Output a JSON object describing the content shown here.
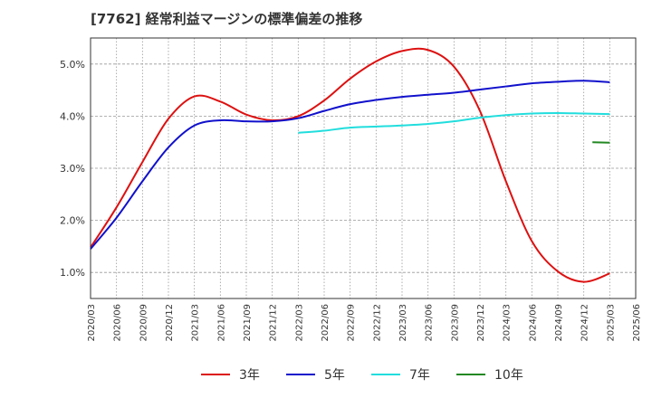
{
  "chart_data": {
    "type": "line",
    "title": "[7762]  経常利益マージンの標準偏差の推移",
    "xlabel": "",
    "ylabel": "",
    "ylim": [
      0.5,
      5.5
    ],
    "y_ticks": [
      "1.0%",
      "2.0%",
      "3.0%",
      "4.0%",
      "5.0%"
    ],
    "y_tick_values": [
      1.0,
      2.0,
      3.0,
      4.0,
      5.0
    ],
    "x_ticks": [
      "2020/03",
      "2020/06",
      "2020/09",
      "2020/12",
      "2021/03",
      "2021/06",
      "2021/09",
      "2021/12",
      "2022/03",
      "2022/06",
      "2022/09",
      "2022/12",
      "2023/03",
      "2023/06",
      "2023/09",
      "2023/12",
      "2024/03",
      "2024/06",
      "2024/09",
      "2024/12",
      "2025/03",
      "2025/06"
    ],
    "grid": true,
    "legend_position": "bottom",
    "series": [
      {
        "name": "3年",
        "color": "#dd1111",
        "points": [
          [
            "2020/03",
            1.48
          ],
          [
            "2020/06",
            2.25
          ],
          [
            "2020/09",
            3.12
          ],
          [
            "2020/12",
            3.95
          ],
          [
            "2021/03",
            4.38
          ],
          [
            "2021/06",
            4.28
          ],
          [
            "2021/09",
            4.03
          ],
          [
            "2021/12",
            3.92
          ],
          [
            "2022/03",
            4.0
          ],
          [
            "2022/06",
            4.3
          ],
          [
            "2022/09",
            4.72
          ],
          [
            "2022/12",
            5.05
          ],
          [
            "2023/03",
            5.25
          ],
          [
            "2023/06",
            5.27
          ],
          [
            "2023/09",
            4.95
          ],
          [
            "2023/12",
            4.1
          ],
          [
            "2024/03",
            2.75
          ],
          [
            "2024/06",
            1.6
          ],
          [
            "2024/09",
            1.02
          ],
          [
            "2024/12",
            0.82
          ],
          [
            "2025/03",
            0.98
          ]
        ]
      },
      {
        "name": "5年",
        "color": "#1111cc",
        "points": [
          [
            "2020/03",
            1.45
          ],
          [
            "2020/06",
            2.05
          ],
          [
            "2020/09",
            2.75
          ],
          [
            "2020/12",
            3.4
          ],
          [
            "2021/03",
            3.82
          ],
          [
            "2021/06",
            3.92
          ],
          [
            "2021/09",
            3.9
          ],
          [
            "2021/12",
            3.9
          ],
          [
            "2022/03",
            3.96
          ],
          [
            "2022/06",
            4.1
          ],
          [
            "2022/09",
            4.23
          ],
          [
            "2022/12",
            4.31
          ],
          [
            "2023/03",
            4.37
          ],
          [
            "2023/06",
            4.41
          ],
          [
            "2023/09",
            4.45
          ],
          [
            "2023/12",
            4.51
          ],
          [
            "2024/03",
            4.57
          ],
          [
            "2024/06",
            4.63
          ],
          [
            "2024/09",
            4.66
          ],
          [
            "2024/12",
            4.68
          ],
          [
            "2025/03",
            4.65
          ]
        ]
      },
      {
        "name": "7年",
        "color": "#22dddd",
        "points": [
          [
            "2022/03",
            3.68
          ],
          [
            "2022/06",
            3.72
          ],
          [
            "2022/09",
            3.78
          ],
          [
            "2022/12",
            3.8
          ],
          [
            "2023/03",
            3.82
          ],
          [
            "2023/06",
            3.85
          ],
          [
            "2023/09",
            3.9
          ],
          [
            "2023/12",
            3.97
          ],
          [
            "2024/03",
            4.02
          ],
          [
            "2024/06",
            4.05
          ],
          [
            "2024/09",
            4.06
          ],
          [
            "2024/12",
            4.05
          ],
          [
            "2025/03",
            4.04
          ]
        ]
      },
      {
        "name": "10年",
        "color": "#228822",
        "points": [
          [
            "2025/01",
            3.5
          ],
          [
            "2025/03",
            3.49
          ]
        ]
      }
    ]
  }
}
